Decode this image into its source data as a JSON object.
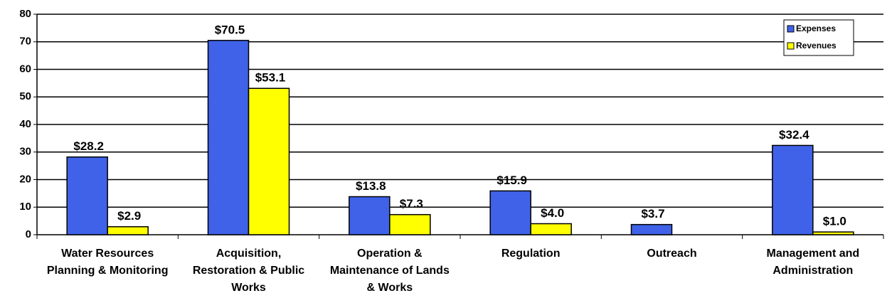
{
  "chart_data": {
    "type": "bar",
    "categories": [
      "Water Resources Planning & Monitoring",
      "Acquisition, Restoration & Public Works",
      "Operation & Maintenance of Lands & Works",
      "Regulation",
      "Outreach",
      "Management and Administration"
    ],
    "series": [
      {
        "name": "Expenses",
        "color": "#3f62e8",
        "values": [
          28.2,
          70.5,
          13.8,
          15.9,
          3.7,
          32.4
        ],
        "value_labels": [
          "$28.2",
          "$70.5",
          "$13.8",
          "$15.9",
          "$3.7",
          "$32.4"
        ]
      },
      {
        "name": "Revenues",
        "color": "#ffff00",
        "values": [
          2.9,
          53.1,
          7.3,
          4.0,
          null,
          1.0
        ],
        "value_labels": [
          "$2.9",
          "$53.1",
          "$7.3",
          "$4.0",
          null,
          "$1.0"
        ]
      }
    ],
    "ylim": [
      0,
      80
    ],
    "yticks": [
      0,
      10,
      20,
      30,
      40,
      50,
      60,
      70,
      80
    ],
    "grid": true,
    "legend": "top-right"
  }
}
